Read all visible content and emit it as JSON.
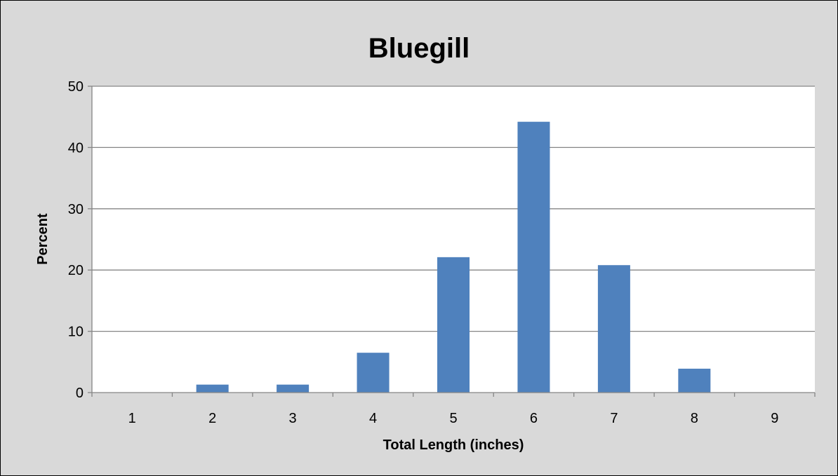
{
  "chart_data": {
    "type": "bar",
    "title": "Bluegill",
    "xlabel": "Total Length (inches)",
    "ylabel": "Percent",
    "categories": [
      "1",
      "2",
      "3",
      "4",
      "5",
      "6",
      "7",
      "8",
      "9"
    ],
    "values": [
      0,
      1.3,
      1.3,
      6.5,
      22.1,
      44.2,
      20.8,
      3.9,
      0
    ],
    "ylim": [
      0,
      50
    ],
    "yticks": [
      "0",
      "10",
      "20",
      "30",
      "40",
      "50"
    ],
    "grid": true,
    "legend": "none",
    "colors": {
      "bar": "#4f81bd",
      "background": "#d9d9d9",
      "plot_area": "#ffffff",
      "gridline": "#868686",
      "axis": "#868686"
    }
  }
}
